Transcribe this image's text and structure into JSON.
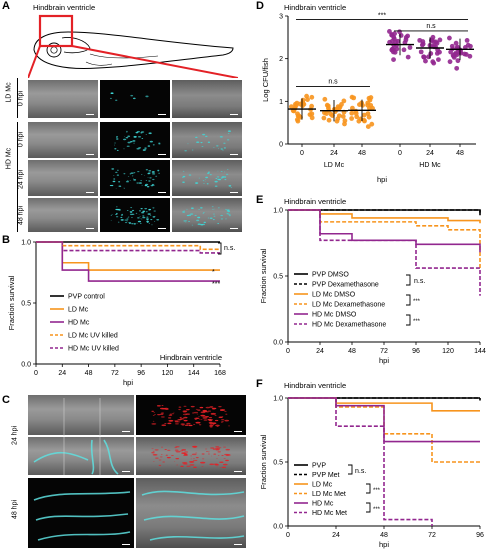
{
  "panels": {
    "A": {
      "label": "A",
      "title": "Hindbrain ventricle",
      "row_groups": [
        "LD Mc",
        "HD Mc"
      ],
      "rows": [
        "0 hpi",
        "0 hpi",
        "24 hpi",
        "48 hpi"
      ]
    },
    "B": {
      "label": "B"
    },
    "C": {
      "label": "C",
      "rows": [
        "24 hpi",
        "48 hpi"
      ]
    },
    "D": {
      "label": "D"
    },
    "E": {
      "label": "E"
    },
    "F": {
      "label": "F"
    }
  },
  "chart_data": [
    {
      "id": "B",
      "type": "line",
      "step": true,
      "title": "Hindbrain ventricle",
      "title_position": "bottom-right",
      "xlabel": "hpi",
      "ylabel": "Fraction survival",
      "xlim": [
        0,
        168
      ],
      "ylim": [
        0.0,
        1.0
      ],
      "xticks": [
        "0",
        "24",
        "48",
        "72",
        "96",
        "120",
        "144",
        "168"
      ],
      "yticks": [
        "0.0",
        "0.5",
        "1.0"
      ],
      "legend_position": "left",
      "series": [
        {
          "name": "PVP control",
          "color": "#000000",
          "dash": false,
          "x": [
            0,
            168
          ],
          "y": [
            1.0,
            1.0
          ]
        },
        {
          "name": "LD Mc",
          "color": "#f7941d",
          "dash": false,
          "x": [
            0,
            24,
            48,
            168
          ],
          "y": [
            1.0,
            0.83,
            0.77,
            0.77
          ]
        },
        {
          "name": "HD Mc",
          "color": "#92278f",
          "dash": false,
          "x": [
            0,
            24,
            48,
            168
          ],
          "y": [
            1.0,
            0.77,
            0.68,
            0.68
          ]
        },
        {
          "name": "LD Mc UV killed",
          "color": "#f7941d",
          "dash": true,
          "x": [
            0,
            24,
            150,
            168
          ],
          "y": [
            1.0,
            0.97,
            0.94,
            0.94
          ]
        },
        {
          "name": "HD Mc UV killed",
          "color": "#92278f",
          "dash": true,
          "x": [
            0,
            24,
            150,
            168
          ],
          "y": [
            1.0,
            0.93,
            0.91,
            0.91
          ]
        }
      ],
      "annotations": [
        "n.s.",
        "*",
        "***"
      ]
    },
    {
      "id": "D",
      "type": "scatter",
      "title": "Hindbrain ventricle",
      "xlabel": "hpi",
      "ylabel": "Log CFU/fish",
      "ylim": [
        0,
        3
      ],
      "yticks": [
        "0",
        "1",
        "2",
        "3"
      ],
      "categories": [
        "0",
        "24",
        "48",
        "0",
        "24",
        "48"
      ],
      "groups": [
        "LD Mc",
        "HD Mc"
      ],
      "series": [
        {
          "name": "LD Mc",
          "color": "#f7941d",
          "means": [
            0.82,
            0.78,
            0.79
          ]
        },
        {
          "name": "HD Mc",
          "color": "#92278f",
          "means": [
            2.33,
            2.25,
            2.22
          ]
        }
      ],
      "annotations": [
        "n.s",
        "n.s",
        "***"
      ]
    },
    {
      "id": "E",
      "type": "line",
      "step": true,
      "title": "Hindbrain ventricle",
      "xlabel": "hpi",
      "ylabel": "Fraction survival",
      "xlim": [
        0,
        144
      ],
      "ylim": [
        0.0,
        1.0
      ],
      "xticks": [
        "0",
        "24",
        "48",
        "72",
        "96",
        "120",
        "144"
      ],
      "yticks": [
        "0.0",
        "0.5",
        "1.0"
      ],
      "legend_position": "bottom-left",
      "series": [
        {
          "name": "PVP DMSO",
          "color": "#000000",
          "dash": false,
          "x": [
            0,
            144
          ],
          "y": [
            1.0,
            0.96
          ]
        },
        {
          "name": "PVP Dexamethasone",
          "color": "#000000",
          "dash": true,
          "x": [
            0,
            144
          ],
          "y": [
            1.0,
            0.98
          ]
        },
        {
          "name": "LD Mc DMSO",
          "color": "#f7941d",
          "dash": false,
          "x": [
            0,
            24,
            48,
            120,
            144
          ],
          "y": [
            1.0,
            0.97,
            0.94,
            0.92,
            0.9
          ]
        },
        {
          "name": "LD Mc Dexamethasone",
          "color": "#f7941d",
          "dash": true,
          "x": [
            0,
            24,
            96,
            120,
            144
          ],
          "y": [
            1.0,
            0.91,
            0.88,
            0.85,
            0.56
          ]
        },
        {
          "name": "HD Mc DMSO",
          "color": "#92278f",
          "dash": false,
          "x": [
            0,
            24,
            48,
            96,
            144
          ],
          "y": [
            1.0,
            0.82,
            0.77,
            0.74,
            0.68
          ]
        },
        {
          "name": "HD Mc Dexamethasone",
          "color": "#92278f",
          "dash": true,
          "x": [
            0,
            24,
            96,
            144
          ],
          "y": [
            1.0,
            0.77,
            0.56,
            0.35
          ]
        }
      ],
      "annotations": [
        "n.s.",
        "***",
        "***"
      ]
    },
    {
      "id": "F",
      "type": "line",
      "step": true,
      "title": "Hindbrain ventricle",
      "xlabel": "hpi",
      "ylabel": "Fraction survival",
      "xlim": [
        0,
        96
      ],
      "ylim": [
        0.0,
        1.0
      ],
      "xticks": [
        "0",
        "24",
        "48",
        "72",
        "96"
      ],
      "yticks": [
        "0.0",
        "0.5",
        "1.0"
      ],
      "legend_position": "bottom-left",
      "series": [
        {
          "name": "PVP",
          "color": "#000000",
          "dash": false,
          "x": [
            0,
            96
          ],
          "y": [
            1.0,
            1.0
          ]
        },
        {
          "name": "PVP Met",
          "color": "#000000",
          "dash": true,
          "x": [
            0,
            96
          ],
          "y": [
            1.0,
            0.98
          ]
        },
        {
          "name": "LD Mc",
          "color": "#f7941d",
          "dash": false,
          "x": [
            0,
            24,
            72,
            96
          ],
          "y": [
            1.0,
            0.96,
            0.9,
            0.9
          ]
        },
        {
          "name": "LD Mc Met",
          "color": "#f7941d",
          "dash": true,
          "x": [
            0,
            24,
            48,
            72,
            96
          ],
          "y": [
            1.0,
            0.93,
            0.72,
            0.5,
            0.5
          ]
        },
        {
          "name": "HD Mc",
          "color": "#92278f",
          "dash": false,
          "x": [
            0,
            24,
            48,
            96
          ],
          "y": [
            1.0,
            0.94,
            0.66,
            0.66
          ]
        },
        {
          "name": "HD Mc Met",
          "color": "#92278f",
          "dash": true,
          "x": [
            0,
            24,
            48,
            72
          ],
          "y": [
            1.0,
            0.78,
            0.05,
            0.0
          ]
        }
      ],
      "annotations": [
        "n.s.",
        "***",
        "***"
      ]
    }
  ]
}
